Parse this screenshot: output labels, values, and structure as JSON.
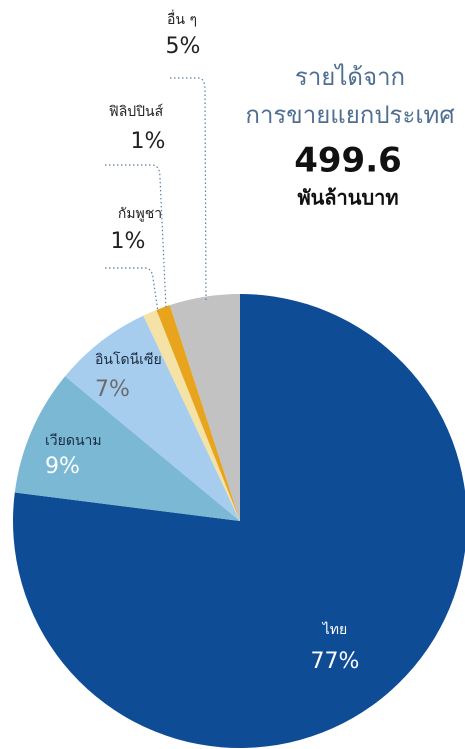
{
  "chart_data": {
    "type": "pie",
    "title": [
      "รายได้จาก",
      "การขายแยกประเทศ"
    ],
    "total": 499.6,
    "total_unit": "พันล้านบาท",
    "categories": [
      "ไทย",
      "เวียดนาม",
      "อินโดนีเซีย",
      "กัมพูชา",
      "ฟิลิปปินส์",
      "อื่น ๆ"
    ],
    "values": [
      77,
      9,
      7,
      1,
      1,
      5
    ],
    "value_labels": [
      "77%",
      "9%",
      "7%",
      "1%",
      "1%",
      "5%"
    ],
    "colors": [
      "#0f4c96",
      "#7ab8d4",
      "#a6cdee",
      "#f5e2a6",
      "#e8a41c",
      "#c2c2c2"
    ]
  }
}
